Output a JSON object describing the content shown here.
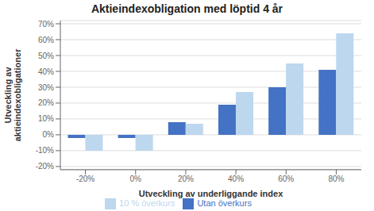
{
  "chart_data": {
    "type": "bar",
    "title": "Aktieindexobligation med löptid 4 år",
    "xlabel": "Utveckling av underliggande index",
    "ylabel": "Utveckling av\naktieindexobligationer",
    "categories": [
      "-20%",
      "0%",
      "20%",
      "40%",
      "60%",
      "80%"
    ],
    "series": [
      {
        "name": "Utan överkurs",
        "color": "#4472c4",
        "values": [
          -0.02,
          -0.02,
          0.08,
          0.19,
          0.3,
          0.41
        ]
      },
      {
        "name": "10 % överkurs",
        "color": "#bdd7ee",
        "values": [
          -0.1,
          -0.1,
          0.07,
          0.27,
          0.45,
          0.64
        ]
      }
    ],
    "ylim": [
      -0.22,
      0.72
    ],
    "yticks": [
      {
        "value": -0.2,
        "label": "-20%"
      },
      {
        "value": -0.1,
        "label": "-10%"
      },
      {
        "value": 0,
        "label": "0%"
      },
      {
        "value": 0.1,
        "label": "10%"
      },
      {
        "value": 0.2,
        "label": "20%"
      },
      {
        "value": 0.3,
        "label": "30%"
      },
      {
        "value": 0.4,
        "label": "40%"
      },
      {
        "value": 0.5,
        "label": "50%"
      },
      {
        "value": 0.6,
        "label": "60%"
      },
      {
        "value": 0.7,
        "label": "70%"
      }
    ],
    "grid": true,
    "legend": "bottom"
  }
}
